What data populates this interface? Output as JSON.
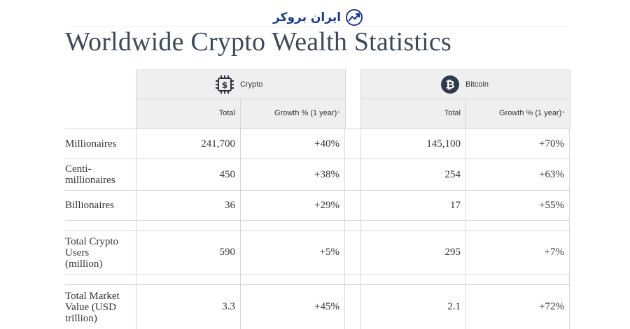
{
  "brand": {
    "logo_text": "ایران بروکر"
  },
  "page": {
    "title": "Worldwide Crypto Wealth Statistics"
  },
  "groups": [
    {
      "label": "Crypto",
      "icon": "chip-dollar-icon"
    },
    {
      "label": "Bitcoin",
      "icon": "bitcoin-icon"
    }
  ],
  "columns": {
    "total": "Total",
    "growth": "Growth % (1 year)",
    "growth_mark": "*"
  },
  "rows": [
    {
      "label": "Millionaires",
      "crypto_total": "241,700",
      "crypto_growth": "+40%",
      "btc_total": "145,100",
      "btc_growth": "+70%"
    },
    {
      "label": "Centi-millionaires",
      "crypto_total": "450",
      "crypto_growth": "+38%",
      "btc_total": "254",
      "btc_growth": "+63%"
    },
    {
      "label": "Billionaires",
      "crypto_total": "36",
      "crypto_growth": "+29%",
      "btc_total": "17",
      "btc_growth": "+55%"
    },
    {
      "label": "Total Crypto Users (million)",
      "crypto_total": "590",
      "crypto_growth": "+5%",
      "btc_total": "295",
      "btc_growth": "+7%"
    },
    {
      "label": "Total Market Value (USD trillion)",
      "crypto_total": "3.3",
      "crypto_growth": "+45%",
      "btc_total": "2.1",
      "btc_growth": "+72%"
    }
  ]
}
